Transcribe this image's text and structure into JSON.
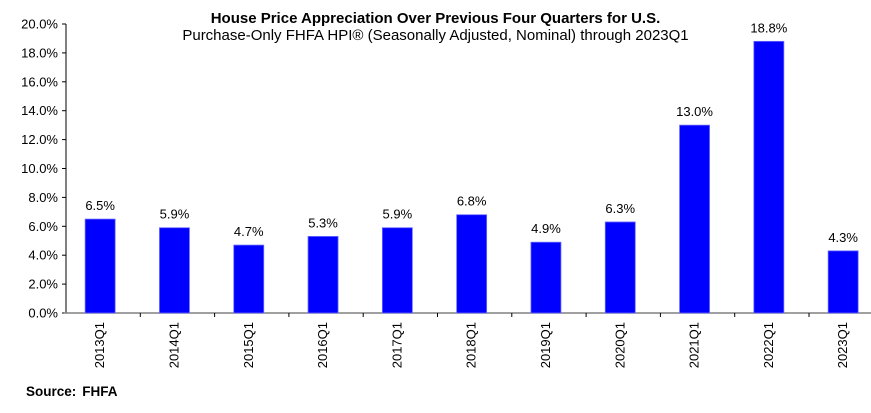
{
  "chart_data": {
    "type": "bar",
    "title": "House Price Appreciation Over Previous Four Quarters for U.S.",
    "subtitle": "Purchase-Only FHFA HPI® (Seasonally Adjusted, Nominal) through 2023Q1",
    "xlabel": "",
    "ylabel": "",
    "categories": [
      "2013Q1",
      "2014Q1",
      "2015Q1",
      "2016Q1",
      "2017Q1",
      "2018Q1",
      "2019Q1",
      "2020Q1",
      "2021Q1",
      "2022Q1",
      "2023Q1"
    ],
    "values": [
      6.5,
      5.9,
      4.7,
      5.3,
      5.9,
      6.8,
      4.9,
      6.3,
      13.0,
      18.8,
      4.3
    ],
    "data_labels": [
      "6.5%",
      "5.9%",
      "4.7%",
      "5.3%",
      "5.9%",
      "6.8%",
      "4.9%",
      "6.3%",
      "13.0%",
      "18.8%",
      "4.3%"
    ],
    "ylim": [
      0,
      20
    ],
    "yticks": [
      0,
      2,
      4,
      6,
      8,
      10,
      12,
      14,
      16,
      18,
      20
    ],
    "ytick_labels": [
      "0.0%",
      "2.0%",
      "4.0%",
      "6.0%",
      "8.0%",
      "10.0%",
      "12.0%",
      "14.0%",
      "16.0%",
      "18.0%",
      "20.0%"
    ],
    "grid": false,
    "legend": "none",
    "bar_color": "#0000FF",
    "source_label": "Source:",
    "source_value": "FHFA"
  }
}
